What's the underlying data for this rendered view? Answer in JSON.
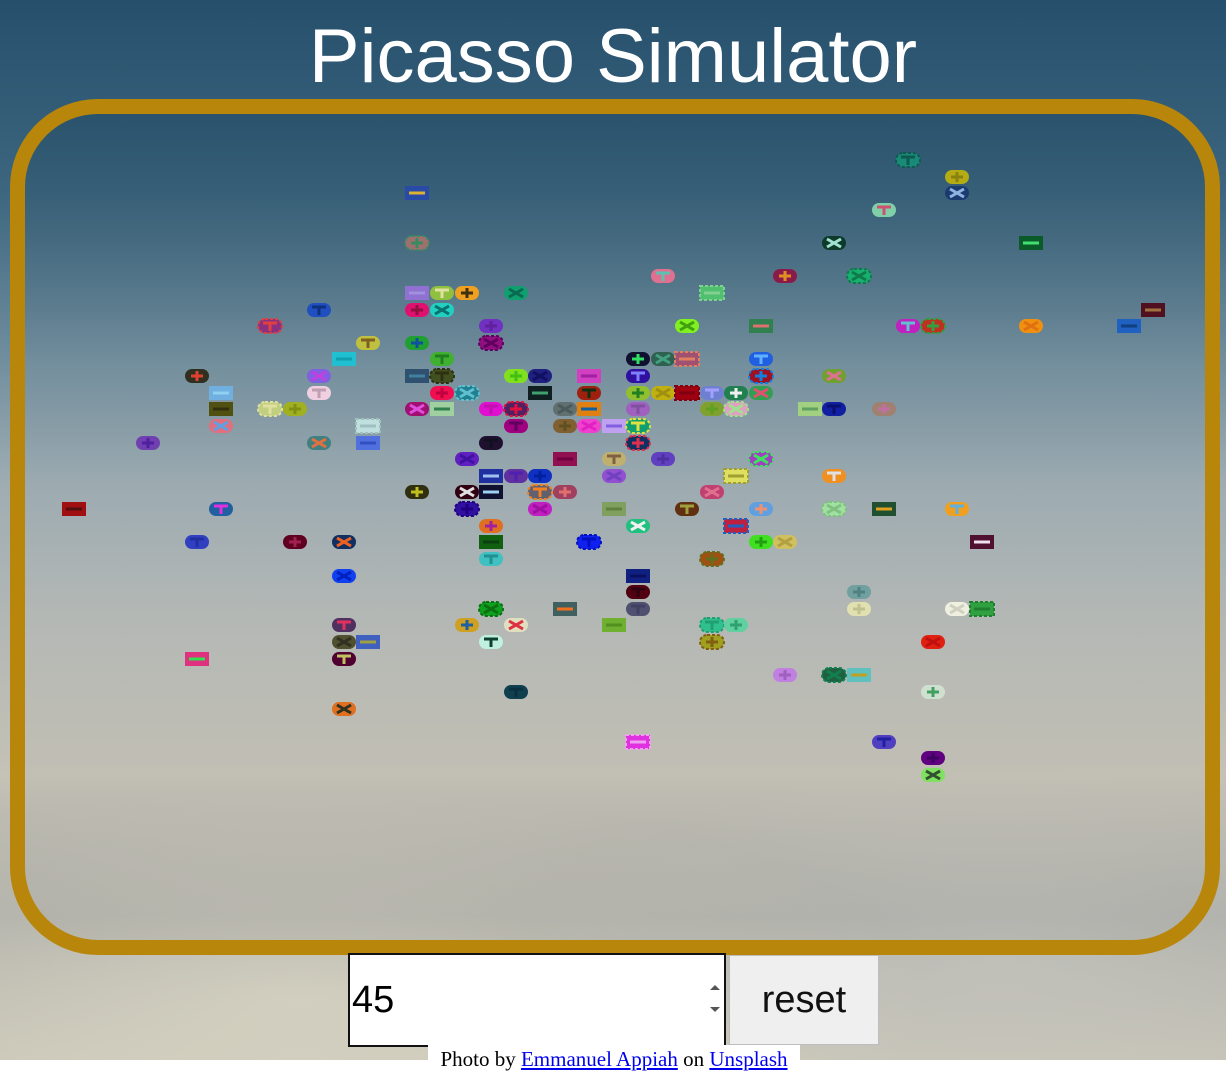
{
  "page": {
    "title": "Picasso Simulator"
  },
  "controls": {
    "count_value": "45",
    "reset_label": "reset"
  },
  "credit": {
    "prefix": "Photo by",
    "author": "Emmanuel Appiah",
    "middle": "on",
    "site": "Unsplash"
  },
  "colors": {
    "frame_border": "#b8860b",
    "title_text": "#ffffff",
    "link": "#0000ee"
  },
  "icons": [
    "spinner-up-icon",
    "spinner-down-icon"
  ]
}
